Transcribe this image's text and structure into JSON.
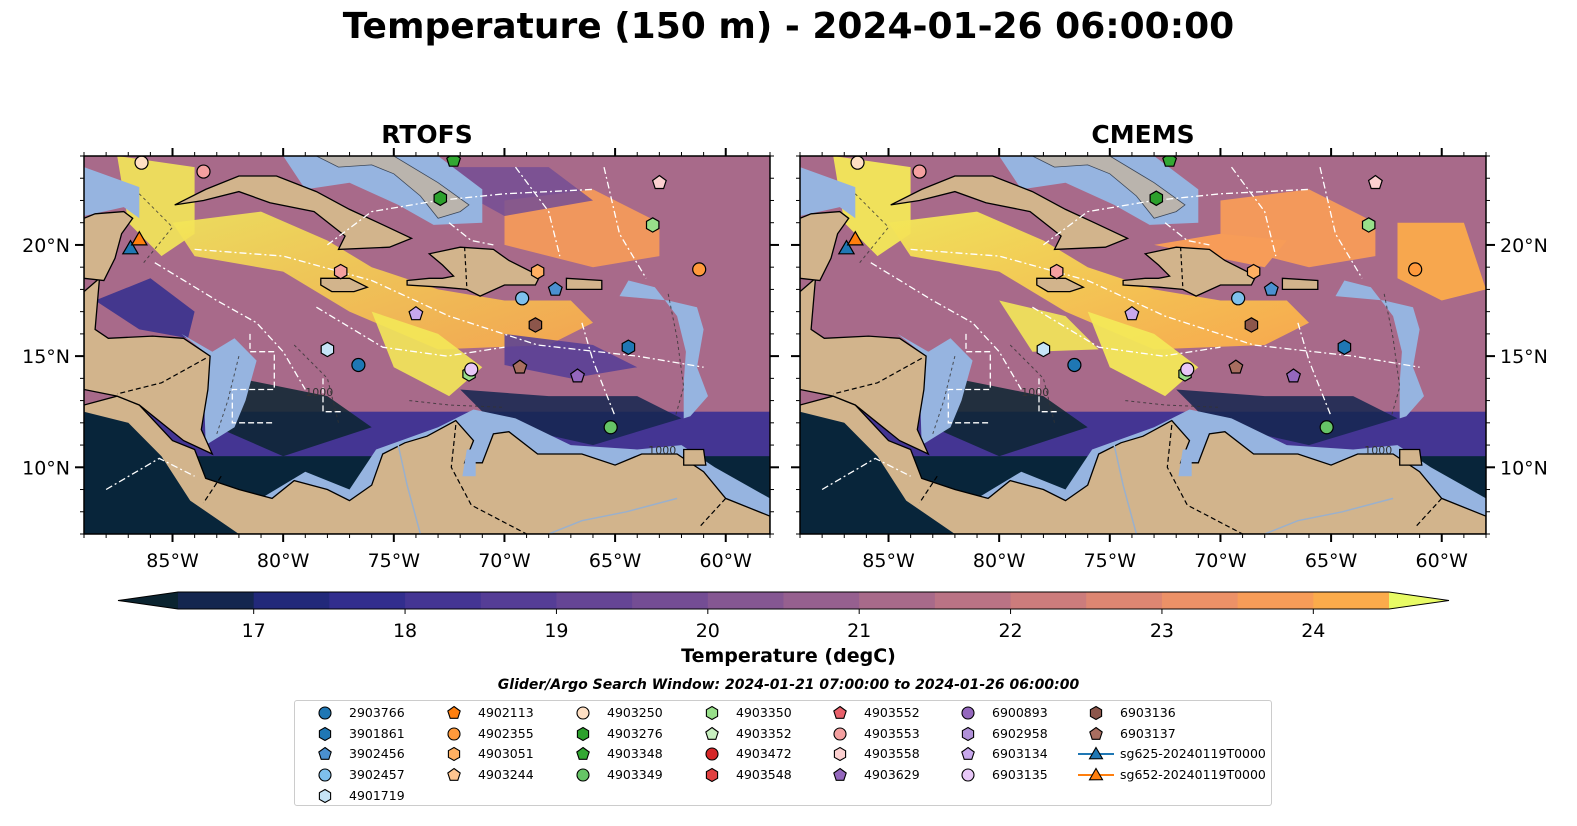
{
  "title": "Temperature (150 m) - 2024-01-26 06:00:00",
  "panels": [
    {
      "name": "RTOFS"
    },
    {
      "name": "CMEMS"
    }
  ],
  "map": {
    "lon_range": [
      -89,
      -58
    ],
    "lat_range": [
      7,
      24
    ],
    "lon_ticks": [
      {
        "value": -85,
        "label": "85°W"
      },
      {
        "value": -80,
        "label": "80°W"
      },
      {
        "value": -75,
        "label": "75°W"
      },
      {
        "value": -70,
        "label": "70°W"
      },
      {
        "value": -65,
        "label": "65°W"
      },
      {
        "value": -60,
        "label": "60°W"
      }
    ],
    "lat_ticks": [
      {
        "value": 20,
        "label": "20°N"
      },
      {
        "value": 15,
        "label": "15°N"
      },
      {
        "value": 10,
        "label": "10°N"
      }
    ],
    "colors": {
      "land": "#d2b48c",
      "shelf": "#96b4e0",
      "deep": "#08253a",
      "contour": "#ffffff"
    },
    "contour_labels": [
      "1000",
      "1000"
    ]
  },
  "colorbar": {
    "label": "Temperature (degC)",
    "min": 16.5,
    "max": 24.5,
    "step": 0.5,
    "ticks": [
      {
        "value": 17,
        "label": "17"
      },
      {
        "value": 18,
        "label": "18"
      },
      {
        "value": 19,
        "label": "19"
      },
      {
        "value": 20,
        "label": "20"
      },
      {
        "value": 21,
        "label": "21"
      },
      {
        "value": 22,
        "label": "22"
      },
      {
        "value": 23,
        "label": "23"
      },
      {
        "value": 24,
        "label": "24"
      }
    ],
    "extend": "both",
    "colors": [
      "#0b2430",
      "#14264f",
      "#22297a",
      "#322e8e",
      "#443593",
      "#553d96",
      "#654595",
      "#744d94",
      "#855792",
      "#96608f",
      "#a86a8a",
      "#ba7385",
      "#cc7c7c",
      "#dd8672",
      "#ec9167",
      "#f79c58",
      "#fbab4b",
      "#fdbd45",
      "#fcd24a",
      "#f3e858",
      "#e8fb65"
    ]
  },
  "search_window": "Glider/Argo Search Window: 2024-01-21 07:00:00 to 2024-01-26 06:00:00",
  "legend": {
    "columns": [
      [
        {
          "label": "2903766",
          "marker": "circle",
          "color": "#1f77b4"
        },
        {
          "label": "3901861",
          "marker": "hexagon",
          "color": "#1f77b4"
        },
        {
          "label": "3902456",
          "marker": "pentagon",
          "color": "#4a90d0"
        },
        {
          "label": "3902457",
          "marker": "circle",
          "color": "#7ec0ec"
        },
        {
          "label": "4901719",
          "marker": "hexagon",
          "color": "#c6e4f7"
        }
      ],
      [
        {
          "label": "4902113",
          "marker": "pentagon",
          "color": "#ff7f0e"
        },
        {
          "label": "4902355",
          "marker": "circle",
          "color": "#ff9a3c"
        },
        {
          "label": "4903051",
          "marker": "hexagon",
          "color": "#ffb062"
        },
        {
          "label": "4903244",
          "marker": "pentagon",
          "color": "#ffc590"
        }
      ],
      [
        {
          "label": "4903250",
          "marker": "circle",
          "color": "#ffe0c4"
        },
        {
          "label": "4903276",
          "marker": "hexagon",
          "color": "#2ca02c"
        },
        {
          "label": "4903348",
          "marker": "pentagon",
          "color": "#33a833"
        },
        {
          "label": "4903349",
          "marker": "circle",
          "color": "#66c466"
        }
      ],
      [
        {
          "label": "4903350",
          "marker": "hexagon",
          "color": "#98df8a"
        },
        {
          "label": "4903352",
          "marker": "pentagon",
          "color": "#c8f0c0"
        },
        {
          "label": "4903472",
          "marker": "circle",
          "color": "#d62728"
        },
        {
          "label": "4903548",
          "marker": "hexagon",
          "color": "#e04040"
        }
      ],
      [
        {
          "label": "4903552",
          "marker": "pentagon",
          "color": "#e8606a"
        },
        {
          "label": "4903553",
          "marker": "circle",
          "color": "#f4a0a0"
        },
        {
          "label": "4903558",
          "marker": "hexagon",
          "color": "#fcd0d0"
        },
        {
          "label": "4903629",
          "marker": "pentagon",
          "color": "#9467bd"
        }
      ],
      [
        {
          "label": "6900893",
          "marker": "circle",
          "color": "#9467bd"
        },
        {
          "label": "6902958",
          "marker": "hexagon",
          "color": "#b090d8"
        },
        {
          "label": "6903134",
          "marker": "pentagon",
          "color": "#c8a8ec"
        },
        {
          "label": "6903135",
          "marker": "circle",
          "color": "#e8c8f8"
        }
      ],
      [
        {
          "label": "6903136",
          "marker": "hexagon",
          "color": "#8c564b"
        },
        {
          "label": "6903137",
          "marker": "pentagon",
          "color": "#a86e60"
        },
        {
          "label": "sg625-20240119T0000",
          "marker": "triangle-line",
          "color": "#1f77b4"
        },
        {
          "label": "sg652-20240119T0000",
          "marker": "triangle-line",
          "color": "#ff7f0e"
        }
      ]
    ]
  },
  "floats": [
    {
      "id": "4903250",
      "lon": -86.4,
      "lat": 23.7,
      "marker": "circle",
      "color": "#ffe0c4"
    },
    {
      "id": "4903553",
      "lon": -83.6,
      "lat": 23.3,
      "marker": "circle",
      "color": "#f4a0a0"
    },
    {
      "id": "4903348",
      "lon": -72.3,
      "lat": 23.8,
      "marker": "pentagon",
      "color": "#33a833"
    },
    {
      "id": "4903276",
      "lon": -72.9,
      "lat": 22.1,
      "marker": "hexagon",
      "color": "#2ca02c"
    },
    {
      "id": "4903558",
      "lon": -63.0,
      "lat": 22.8,
      "marker": "pentagon",
      "color": "#fcd0d0"
    },
    {
      "id": "4903350",
      "lon": -63.3,
      "lat": 20.9,
      "marker": "hexagon",
      "color": "#98df8a"
    },
    {
      "id": "4903553",
      "lon": -77.4,
      "lat": 18.8,
      "marker": "hexagon",
      "color": "#f4a0a0"
    },
    {
      "id": "4903051",
      "lon": -68.5,
      "lat": 18.8,
      "marker": "hexagon",
      "color": "#ffb062"
    },
    {
      "id": "4902355",
      "lon": -61.2,
      "lat": 18.9,
      "marker": "circle",
      "color": "#ff9a3c"
    },
    {
      "id": "3902456",
      "lon": -67.7,
      "lat": 18.0,
      "marker": "pentagon",
      "color": "#4a90d0"
    },
    {
      "id": "3902457",
      "lon": -69.2,
      "lat": 17.6,
      "marker": "circle",
      "color": "#7ec0ec"
    },
    {
      "id": "6903134",
      "lon": -74.0,
      "lat": 16.9,
      "marker": "pentagon",
      "color": "#c8a8ec"
    },
    {
      "id": "6903136",
      "lon": -68.6,
      "lat": 16.4,
      "marker": "hexagon",
      "color": "#8c564b"
    },
    {
      "id": "4901719",
      "lon": -78.0,
      "lat": 15.3,
      "marker": "hexagon",
      "color": "#c6e4f7"
    },
    {
      "id": "3901861",
      "lon": -64.4,
      "lat": 15.4,
      "marker": "hexagon",
      "color": "#1f77b4"
    },
    {
      "id": "2903766",
      "lon": -76.6,
      "lat": 14.6,
      "marker": "circle",
      "color": "#1f77b4"
    },
    {
      "id": "6903137",
      "lon": -69.3,
      "lat": 14.5,
      "marker": "pentagon",
      "color": "#a86e60"
    },
    {
      "id": "4903350",
      "lon": -71.6,
      "lat": 14.2,
      "marker": "hexagon",
      "color": "#98df8a"
    },
    {
      "id": "6903135",
      "lon": -71.5,
      "lat": 14.4,
      "marker": "circle",
      "color": "#e8c8f8"
    },
    {
      "id": "4903629",
      "lon": -66.7,
      "lat": 14.1,
      "marker": "pentagon",
      "color": "#9467bd"
    },
    {
      "id": "4903349",
      "lon": -65.2,
      "lat": 11.8,
      "marker": "circle",
      "color": "#66c466"
    },
    {
      "id": "sg625-20240119T0000",
      "lon": -86.9,
      "lat": 19.8,
      "marker": "triangle",
      "color": "#1f77b4"
    },
    {
      "id": "sg652-20240119T0000",
      "lon": -86.5,
      "lat": 20.2,
      "marker": "triangle",
      "color": "#ff7f0e"
    }
  ]
}
